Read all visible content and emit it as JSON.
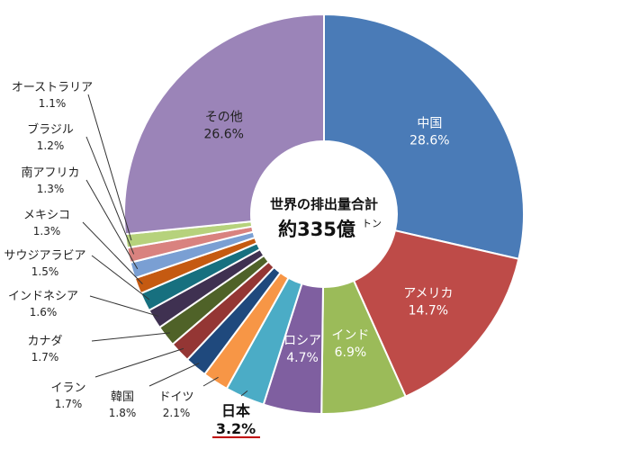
{
  "chart_data": {
    "type": "pie",
    "center_label": {
      "line1": "世界の排出量合計",
      "line2": "約335億",
      "unit": "トン"
    },
    "slices": [
      {
        "label": "中国",
        "value": 28.6,
        "display": "28.6%",
        "color": "#4a7bb7"
      },
      {
        "label": "アメリカ",
        "value": 14.7,
        "display": "14.7%",
        "color": "#be4b48"
      },
      {
        "label": "インド",
        "value": 6.9,
        "display": "6.9%",
        "color": "#9bbb59"
      },
      {
        "label": "ロシア",
        "value": 4.7,
        "display": "4.7%",
        "color": "#7f5fa0"
      },
      {
        "label": "日本",
        "value": 3.2,
        "display": "3.2%",
        "color": "#4bacc6"
      },
      {
        "label": "ドイツ",
        "value": 2.1,
        "display": "2.1%",
        "color": "#f79646"
      },
      {
        "label": "韓国",
        "value": 1.8,
        "display": "1.8%",
        "color": "#1f497d"
      },
      {
        "label": "イラン",
        "value": 1.7,
        "display": "1.7%",
        "color": "#943634"
      },
      {
        "label": "カナダ",
        "value": 1.7,
        "display": "1.7%",
        "color": "#4f6228"
      },
      {
        "label": "インドネシア",
        "value": 1.6,
        "display": "1.6%",
        "color": "#3f3151"
      },
      {
        "label": "サウジアラビア",
        "value": 1.5,
        "display": "1.5%",
        "color": "#17707f"
      },
      {
        "label": "メキシコ",
        "value": 1.3,
        "display": "1.3%",
        "color": "#c55a11"
      },
      {
        "label": "南アフリカ",
        "value": 1.3,
        "display": "1.3%",
        "color": "#7a9fd3"
      },
      {
        "label": "ブラジル",
        "value": 1.2,
        "display": "1.2%",
        "color": "#d9827f"
      },
      {
        "label": "オーストラリア",
        "value": 1.1,
        "display": "1.1%",
        "color": "#b6d27c"
      },
      {
        "label": "その他",
        "value": 26.6,
        "display": "26.6%",
        "color": "#9b84b8"
      }
    ]
  }
}
